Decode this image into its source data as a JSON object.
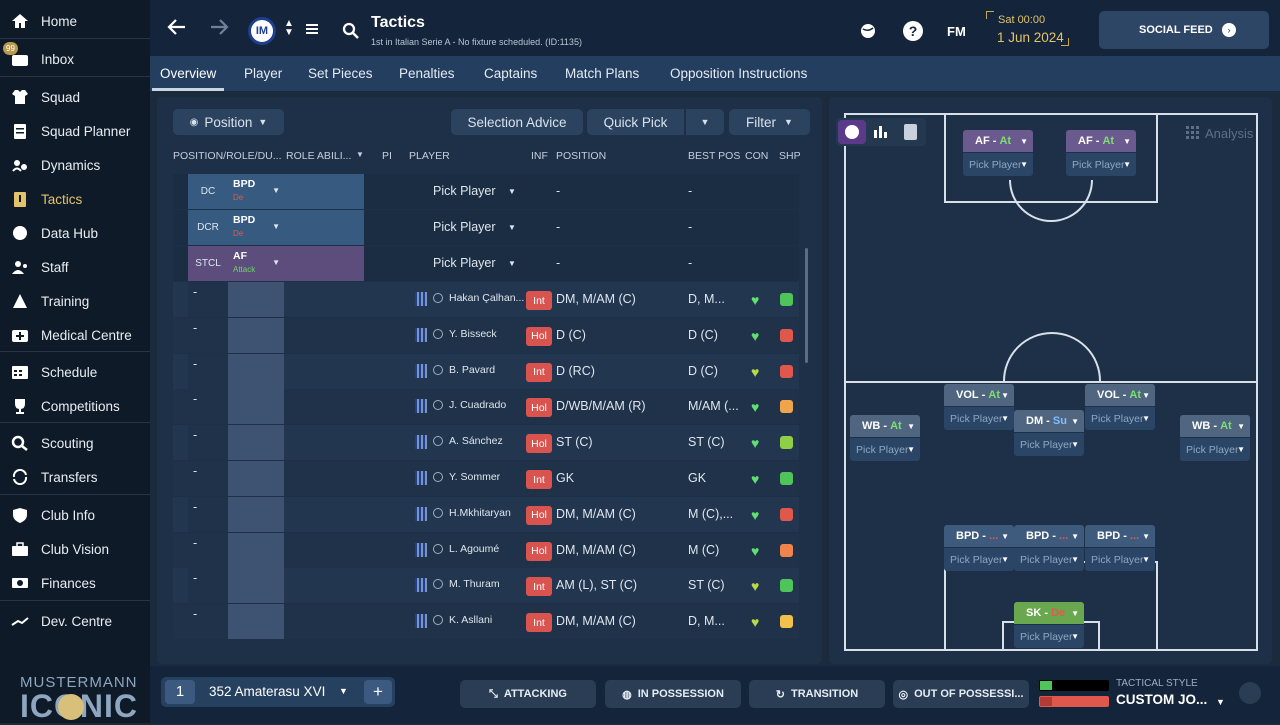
{
  "sidebar": {
    "items": [
      {
        "label": "Home",
        "icon": "home-icon"
      },
      {
        "label": "Inbox",
        "icon": "inbox-icon",
        "badge": "99"
      },
      {
        "label": "Squad",
        "icon": "shirt-icon"
      },
      {
        "label": "Squad Planner",
        "icon": "clipboard-icon"
      },
      {
        "label": "Dynamics",
        "icon": "dynamics-icon"
      },
      {
        "label": "Tactics",
        "icon": "tactics-icon"
      },
      {
        "label": "Data Hub",
        "icon": "data-hub-icon"
      },
      {
        "label": "Staff",
        "icon": "staff-icon"
      },
      {
        "label": "Training",
        "icon": "training-icon"
      },
      {
        "label": "Medical Centre",
        "icon": "medical-icon"
      },
      {
        "label": "Schedule",
        "icon": "calendar-icon"
      },
      {
        "label": "Competitions",
        "icon": "trophy-icon"
      },
      {
        "label": "Scouting",
        "icon": "search-icon"
      },
      {
        "label": "Transfers",
        "icon": "transfers-icon"
      },
      {
        "label": "Club Info",
        "icon": "shield-icon"
      },
      {
        "label": "Club Vision",
        "icon": "briefcase-icon"
      },
      {
        "label": "Finances",
        "icon": "money-icon"
      },
      {
        "label": "Dev. Centre",
        "icon": "dev-centre-icon"
      }
    ],
    "brand_top": "MUSTERMANN",
    "brand_bottom": "ICONIC"
  },
  "header": {
    "title": "Tactics",
    "subtitle": "1st in Italian Serie A - No fixture scheduled. (ID:1135)",
    "club_logo_text": "IM",
    "date_day": "Sat 00:00",
    "date_full": "1 Jun 2024",
    "fm_label": "FM",
    "social_feed": "SOCIAL FEED"
  },
  "tabs": [
    "Overview",
    "Player",
    "Set Pieces",
    "Penalties",
    "Captains",
    "Match Plans",
    "Opposition Instructions"
  ],
  "toolbar": {
    "position_btn": "Position",
    "selection_advice": "Selection Advice",
    "quick_pick": "Quick Pick",
    "filter": "Filter",
    "analysis": "Analysis"
  },
  "table": {
    "headers": [
      "POSITION/ROLE/DU...",
      "ROLE ABILI...",
      "PI",
      "PLAYER",
      "INF",
      "POSITION",
      "BEST POS",
      "CON",
      "SHP"
    ],
    "slots": [
      {
        "pos": "DC",
        "role": "BPD",
        "duty": "De",
        "player": "Pick Player",
        "position": "-",
        "best": "-"
      },
      {
        "pos": "DCR",
        "role": "BPD",
        "duty": "De",
        "player": "Pick Player",
        "position": "-",
        "best": "-"
      },
      {
        "pos": "STCL",
        "role": "AF",
        "duty": "Attack",
        "player": "Pick Player",
        "position": "-",
        "best": "-"
      }
    ],
    "players": [
      {
        "slot": "-",
        "name": "Hakan Çalhan...",
        "inf": "Int",
        "position": "DM, M/AM (C)",
        "best": "D, M...",
        "con": "#5fe070",
        "shp": "#4fc45a"
      },
      {
        "slot": "-",
        "name": "Y. Bisseck",
        "inf": "Hol",
        "position": "D (C)",
        "best": "D (C)",
        "con": "#5fe070",
        "shp": "#e0584c"
      },
      {
        "slot": "-",
        "name": "B. Pavard",
        "inf": "Int",
        "position": "D (RC)",
        "best": "D (C)",
        "con": "#b9d94a",
        "shp": "#e0584c"
      },
      {
        "slot": "-",
        "name": "J. Cuadrado",
        "inf": "Hol",
        "position": "D/WB/M/AM (R)",
        "best": "M/AM (...",
        "con": "#5fe070",
        "shp": "#f0a44c"
      },
      {
        "slot": "-",
        "name": "A. Sánchez",
        "inf": "Hol",
        "position": "ST (C)",
        "best": "ST (C)",
        "con": "#5fe070",
        "shp": "#8fcf45"
      },
      {
        "slot": "-",
        "name": "Y. Sommer",
        "inf": "Int",
        "position": "GK",
        "best": "GK",
        "con": "#5fe070",
        "shp": "#4fc45a"
      },
      {
        "slot": "-",
        "name": "H.Mkhitaryan",
        "inf": "Hol",
        "position": "DM, M/AM (C)",
        "best": "M (C),...",
        "con": "#5fe070",
        "shp": "#e0584c"
      },
      {
        "slot": "-",
        "name": "L. Agoumé",
        "inf": "Hol",
        "position": "DM, M/AM (C)",
        "best": "M (C)",
        "con": "#5fe070",
        "shp": "#f0844c"
      },
      {
        "slot": "-",
        "name": "M. Thuram",
        "inf": "Int",
        "position": "AM (L), ST (C)",
        "best": "ST (C)",
        "con": "#b9d94a",
        "shp": "#4fc45a"
      },
      {
        "slot": "-",
        "name": "K. Asllani",
        "inf": "Int",
        "position": "DM, M/AM (C)",
        "best": "D, M...",
        "con": "#b9d94a",
        "shp": "#f0c24c"
      }
    ]
  },
  "pitch": {
    "pick_label": "Pick Player",
    "positions": [
      {
        "role": "AF",
        "duty": "At",
        "color": "#6b5a8e"
      },
      {
        "role": "AF",
        "duty": "At",
        "color": "#6b5a8e"
      },
      {
        "role": "VOL",
        "duty": "At",
        "color": "#4f6580"
      },
      {
        "role": "VOL",
        "duty": "At",
        "color": "#4f6580"
      },
      {
        "role": "DM",
        "duty": "Su",
        "color": "#4f6580"
      },
      {
        "role": "WB",
        "duty": "At",
        "color": "#4f6580"
      },
      {
        "role": "WB",
        "duty": "At",
        "color": "#4f6580"
      },
      {
        "role": "BPD",
        "duty": "...",
        "color": "#3e5a7c"
      },
      {
        "role": "BPD",
        "duty": "...",
        "color": "#3e5a7c"
      },
      {
        "role": "BPD",
        "duty": "...",
        "color": "#3e5a7c"
      },
      {
        "role": "SK",
        "duty": "De",
        "color": "#6aa84f"
      }
    ]
  },
  "bottom": {
    "tactic_num": "1",
    "tactic_name": "352 Amaterasu XVI",
    "attacking": "ATTACKING",
    "in_possession": "IN POSSESSION",
    "transition": "TRANSITION",
    "out_of_possession": "OUT OF POSSESSI...",
    "style_label": "TACTICAL STYLE",
    "style_value": "CUSTOM JO..."
  }
}
